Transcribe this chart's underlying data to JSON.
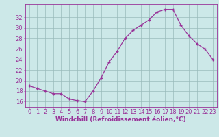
{
  "x": [
    0,
    1,
    2,
    3,
    4,
    5,
    6,
    7,
    8,
    9,
    10,
    11,
    12,
    13,
    14,
    15,
    16,
    17,
    18,
    19,
    20,
    21,
    22,
    23
  ],
  "y": [
    19.0,
    18.5,
    18.0,
    17.5,
    17.5,
    16.5,
    16.2,
    16.0,
    18.0,
    20.5,
    23.5,
    25.5,
    28.0,
    29.5,
    30.5,
    31.5,
    33.0,
    33.5,
    33.5,
    30.5,
    28.5,
    27.0,
    26.0,
    24.0
  ],
  "line_color": "#993399",
  "marker": "+",
  "bg_color": "#cce8e8",
  "grid_color": "#99bbbb",
  "xlabel": "Windchill (Refroidissement éolien,°C)",
  "yticks": [
    16,
    18,
    20,
    22,
    24,
    26,
    28,
    30,
    32
  ],
  "xlim": [
    -0.5,
    23.5
  ],
  "ylim": [
    15.0,
    34.5
  ],
  "tick_color": "#993399",
  "label_color": "#993399",
  "label_fontsize": 6.5,
  "tick_fontsize": 6.0
}
